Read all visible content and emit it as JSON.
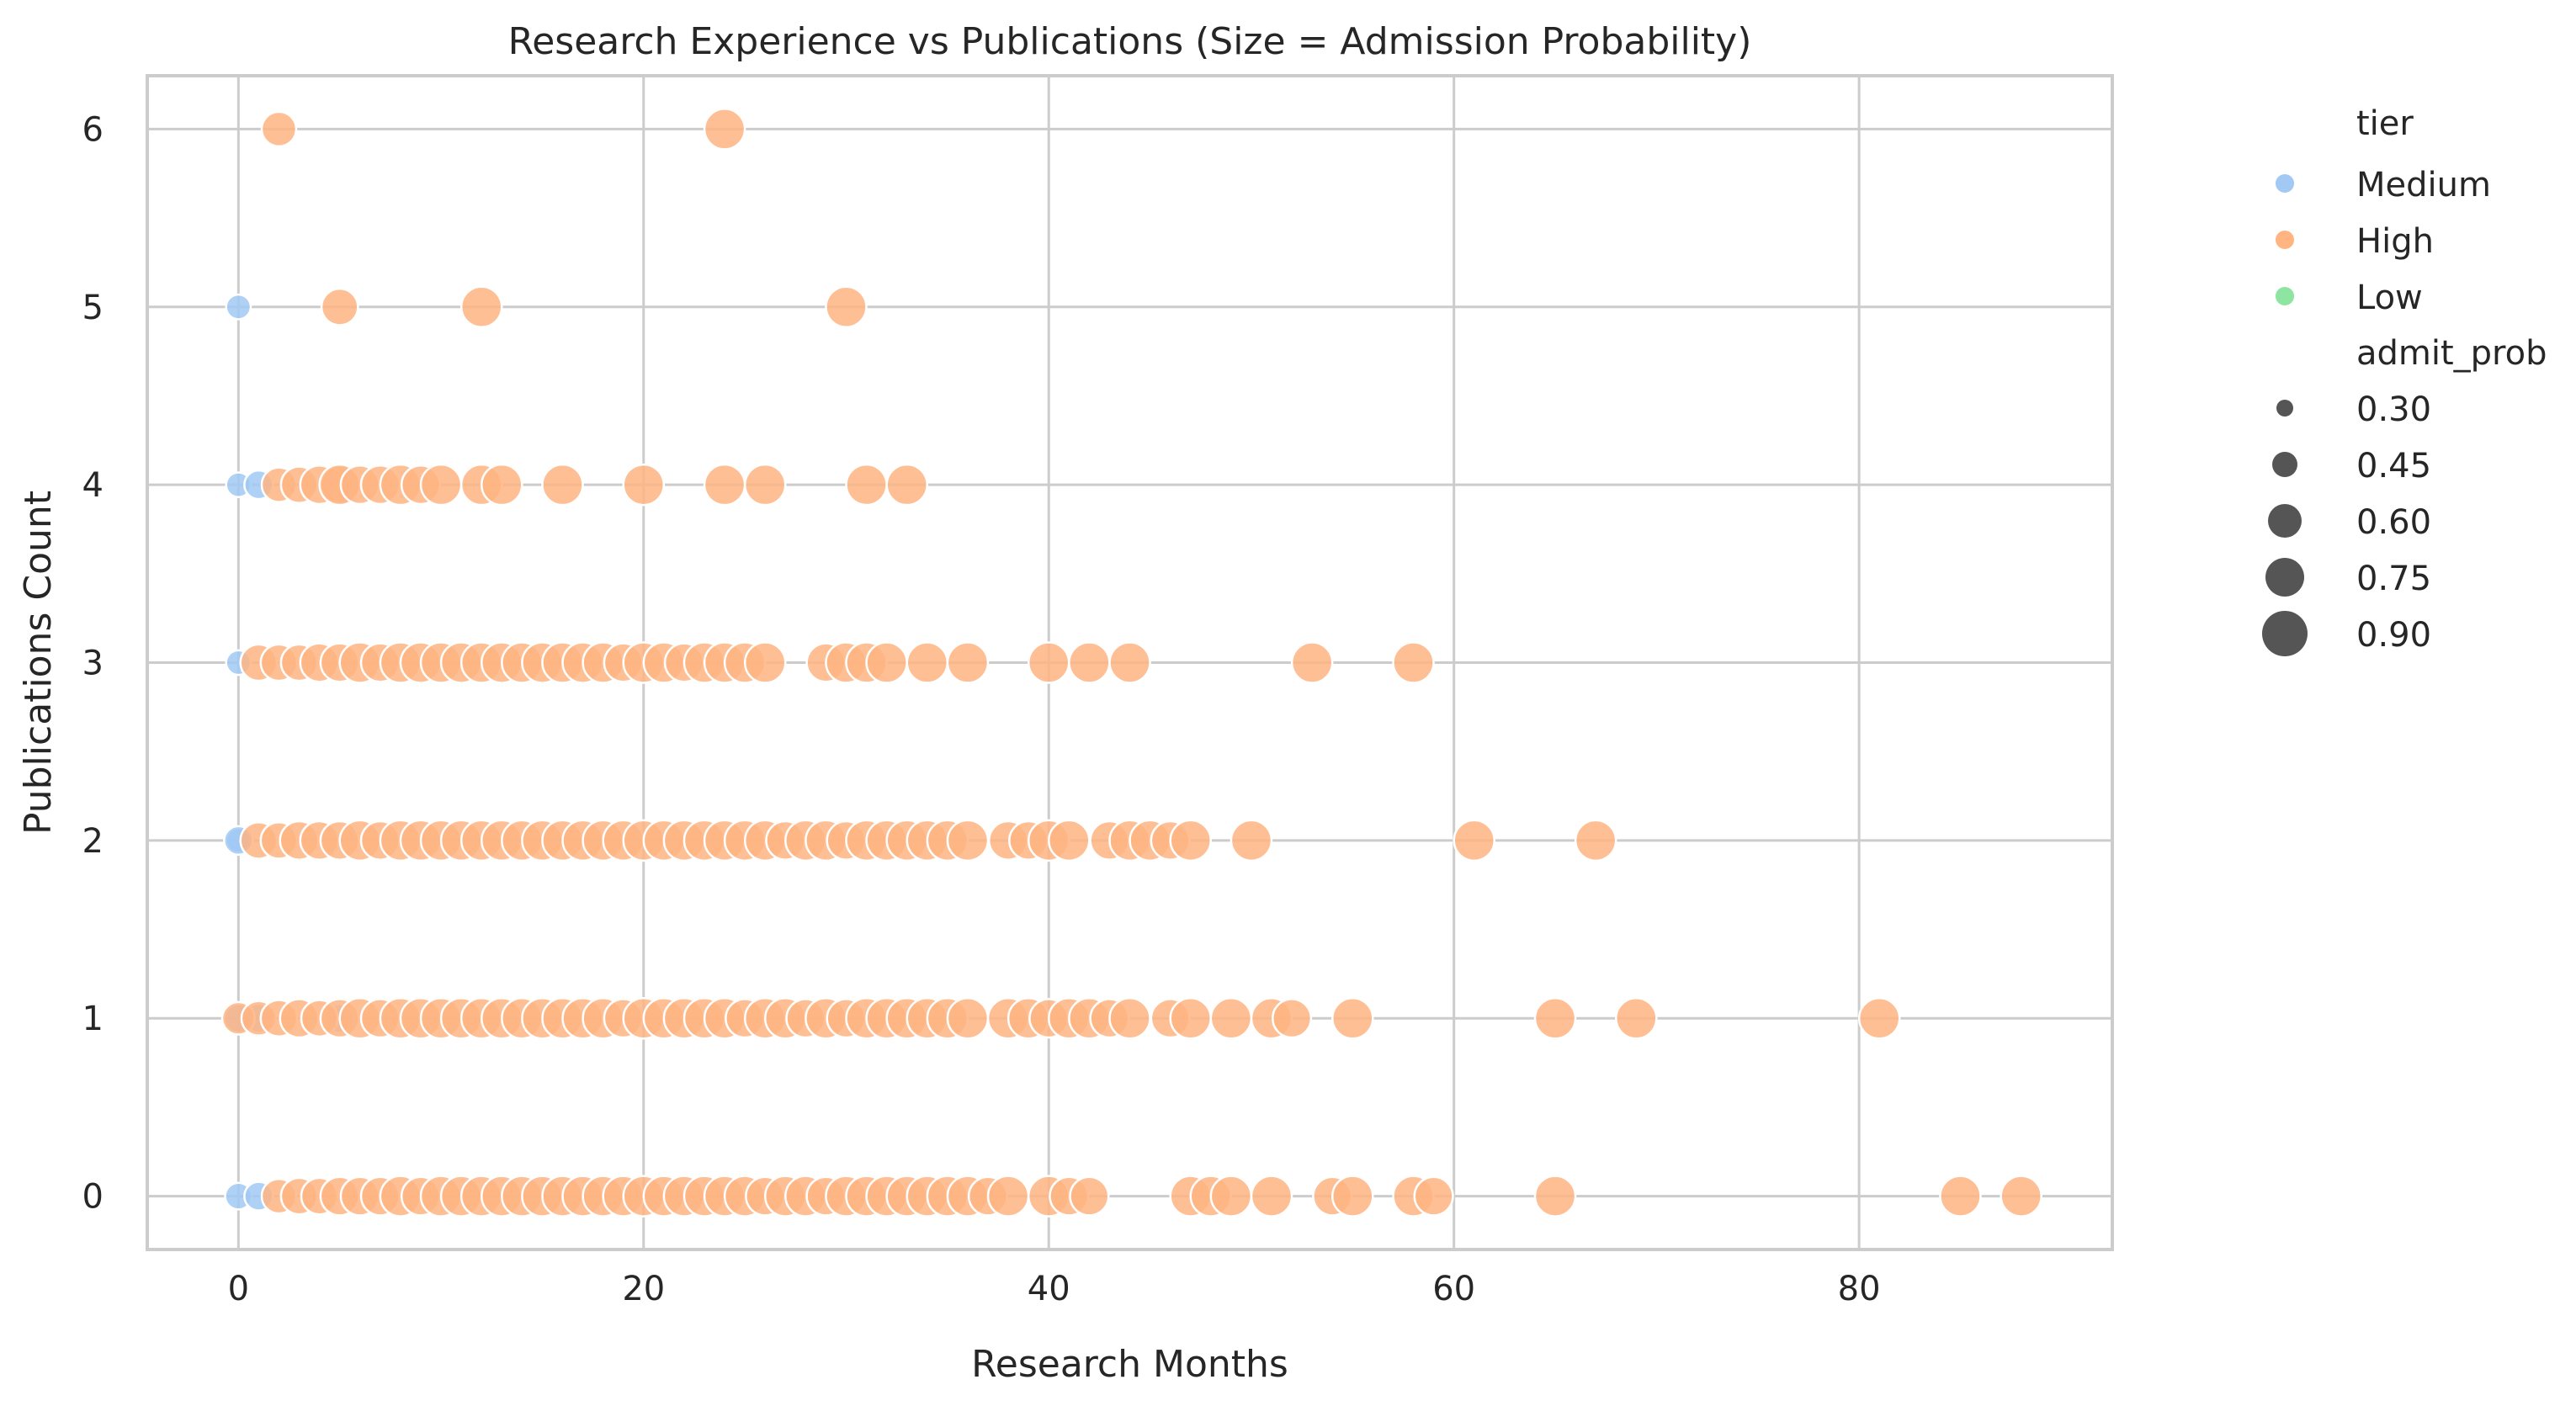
{
  "chart_data": {
    "type": "scatter",
    "title": "Research Experience vs Publications (Size = Admission Probability)",
    "xlabel": "Research Months",
    "ylabel": "Publications Count",
    "xlim": [
      -4.5,
      92.5
    ],
    "ylim": [
      -0.3,
      6.3
    ],
    "xticks": [
      0,
      20,
      40,
      60,
      80
    ],
    "yticks": [
      0,
      1,
      2,
      3,
      4,
      5,
      6
    ],
    "grid": true,
    "legend_position": "outside-right",
    "colors": {
      "Medium": "#a1c9f4",
      "High": "#ffb482",
      "Low": "#8de5a1",
      "size_marker": "#555555"
    },
    "legend": {
      "hue_title": "tier",
      "hue_entries": [
        "Medium",
        "High",
        "Low"
      ],
      "size_title": "admit_prob",
      "size_entries": [
        "0.30",
        "0.45",
        "0.60",
        "0.75",
        "0.90"
      ]
    },
    "series": [
      {
        "name": "Medium",
        "x": [
          0,
          0,
          1,
          0,
          0,
          0,
          1,
          0,
          5,
          0,
          1
        ],
        "y": [
          5,
          4,
          4,
          3,
          2,
          2,
          1,
          1,
          1,
          0,
          0
        ],
        "admit_prob": [
          0.5,
          0.5,
          0.6,
          0.5,
          0.5,
          0.6,
          0.6,
          0.6,
          0.6,
          0.55,
          0.6
        ]
      },
      {
        "name": "High",
        "x": [
          2,
          24,
          5,
          12,
          30,
          2,
          3,
          4,
          5,
          5,
          6,
          7,
          8,
          9,
          10,
          12,
          13,
          16,
          20,
          24,
          26,
          31,
          33,
          1,
          2,
          3,
          4,
          5,
          6,
          7,
          8,
          9,
          10,
          11,
          12,
          13,
          14,
          15,
          16,
          17,
          18,
          19,
          20,
          21,
          22,
          23,
          24,
          25,
          26,
          29,
          30,
          31,
          32,
          34,
          36,
          40,
          42,
          44,
          53,
          58,
          1,
          2,
          3,
          4,
          5,
          6,
          7,
          8,
          9,
          10,
          11,
          12,
          13,
          14,
          15,
          16,
          17,
          18,
          19,
          20,
          21,
          22,
          23,
          24,
          25,
          26,
          27,
          28,
          29,
          30,
          31,
          32,
          33,
          34,
          35,
          36,
          38,
          39,
          40,
          41,
          43,
          44,
          45,
          46,
          47,
          50,
          61,
          67,
          0,
          1,
          2,
          3,
          4,
          5,
          6,
          7,
          8,
          9,
          10,
          11,
          12,
          13,
          14,
          15,
          16,
          17,
          18,
          19,
          20,
          21,
          22,
          23,
          24,
          25,
          26,
          27,
          28,
          29,
          30,
          31,
          32,
          33,
          34,
          35,
          36,
          38,
          39,
          40,
          41,
          42,
          43,
          44,
          46,
          47,
          49,
          51,
          52,
          55,
          65,
          69,
          81,
          2,
          3,
          4,
          5,
          6,
          7,
          8,
          9,
          10,
          11,
          12,
          13,
          14,
          15,
          16,
          17,
          18,
          19,
          20,
          21,
          22,
          23,
          24,
          25,
          26,
          27,
          28,
          29,
          30,
          31,
          32,
          33,
          34,
          35,
          36,
          37,
          38,
          40,
          41,
          42,
          47,
          48,
          49,
          51,
          54,
          55,
          58,
          59,
          65,
          85,
          88
        ],
        "y": [
          6,
          6,
          5,
          5,
          5,
          4,
          4,
          4,
          4,
          4,
          4,
          4,
          4,
          4,
          4,
          4,
          4,
          4,
          4,
          4,
          4,
          4,
          4,
          3,
          3,
          3,
          3,
          3,
          3,
          3,
          3,
          3,
          3,
          3,
          3,
          3,
          3,
          3,
          3,
          3,
          3,
          3,
          3,
          3,
          3,
          3,
          3,
          3,
          3,
          3,
          3,
          3,
          3,
          3,
          3,
          3,
          3,
          3,
          3,
          3,
          2,
          2,
          2,
          2,
          2,
          2,
          2,
          2,
          2,
          2,
          2,
          2,
          2,
          2,
          2,
          2,
          2,
          2,
          2,
          2,
          2,
          2,
          2,
          2,
          2,
          2,
          2,
          2,
          2,
          2,
          2,
          2,
          2,
          2,
          2,
          2,
          2,
          2,
          2,
          2,
          2,
          2,
          2,
          2,
          2,
          2,
          2,
          2,
          1,
          1,
          1,
          1,
          1,
          1,
          1,
          1,
          1,
          1,
          1,
          1,
          1,
          1,
          1,
          1,
          1,
          1,
          1,
          1,
          1,
          1,
          1,
          1,
          1,
          1,
          1,
          1,
          1,
          1,
          1,
          1,
          1,
          1,
          1,
          1,
          1,
          1,
          1,
          1,
          1,
          1,
          1,
          1,
          1,
          1,
          1,
          1,
          1,
          1,
          1,
          1,
          1,
          0,
          0,
          0,
          0,
          0,
          0,
          0,
          0,
          0,
          0,
          0,
          0,
          0,
          0,
          0,
          0,
          0,
          0,
          0,
          0,
          0,
          0,
          0,
          0,
          0,
          0,
          0,
          0,
          0,
          0,
          0,
          0,
          0,
          0,
          0,
          0,
          0,
          0,
          0,
          0,
          0,
          0,
          0,
          0,
          0,
          0,
          0,
          0,
          0,
          0,
          0
        ],
        "admit_prob": [
          0.75,
          0.9,
          0.8,
          0.9,
          0.9,
          0.75,
          0.8,
          0.85,
          0.85,
          0.9,
          0.85,
          0.85,
          0.9,
          0.85,
          0.9,
          0.9,
          0.9,
          0.9,
          0.9,
          0.9,
          0.9,
          0.9,
          0.9,
          0.8,
          0.8,
          0.8,
          0.85,
          0.85,
          0.9,
          0.85,
          0.9,
          0.9,
          0.9,
          0.9,
          0.9,
          0.9,
          0.9,
          0.9,
          0.9,
          0.9,
          0.9,
          0.85,
          0.9,
          0.9,
          0.85,
          0.9,
          0.9,
          0.9,
          0.9,
          0.85,
          0.9,
          0.9,
          0.9,
          0.9,
          0.9,
          0.9,
          0.9,
          0.9,
          0.9,
          0.9,
          0.8,
          0.8,
          0.85,
          0.85,
          0.85,
          0.9,
          0.85,
          0.9,
          0.9,
          0.9,
          0.9,
          0.9,
          0.9,
          0.9,
          0.9,
          0.9,
          0.9,
          0.9,
          0.9,
          0.9,
          0.9,
          0.9,
          0.9,
          0.9,
          0.9,
          0.9,
          0.85,
          0.9,
          0.9,
          0.85,
          0.9,
          0.9,
          0.9,
          0.9,
          0.9,
          0.9,
          0.85,
          0.85,
          0.9,
          0.9,
          0.85,
          0.9,
          0.9,
          0.85,
          0.9,
          0.9,
          0.9,
          0.9,
          0.7,
          0.75,
          0.8,
          0.85,
          0.8,
          0.85,
          0.9,
          0.85,
          0.9,
          0.9,
          0.9,
          0.9,
          0.9,
          0.9,
          0.9,
          0.9,
          0.9,
          0.9,
          0.9,
          0.85,
          0.9,
          0.9,
          0.9,
          0.9,
          0.9,
          0.85,
          0.9,
          0.9,
          0.85,
          0.9,
          0.85,
          0.9,
          0.9,
          0.9,
          0.9,
          0.9,
          0.9,
          0.9,
          0.9,
          0.85,
          0.9,
          0.9,
          0.85,
          0.9,
          0.85,
          0.9,
          0.9,
          0.9,
          0.85,
          0.9,
          0.9,
          0.9,
          0.9,
          0.75,
          0.8,
          0.8,
          0.85,
          0.85,
          0.85,
          0.9,
          0.85,
          0.9,
          0.9,
          0.9,
          0.9,
          0.9,
          0.9,
          0.9,
          0.9,
          0.9,
          0.9,
          0.9,
          0.9,
          0.9,
          0.9,
          0.9,
          0.9,
          0.85,
          0.9,
          0.9,
          0.85,
          0.9,
          0.9,
          0.9,
          0.9,
          0.9,
          0.9,
          0.9,
          0.85,
          0.9,
          0.9,
          0.85,
          0.85,
          0.9,
          0.9,
          0.9,
          0.9,
          0.85,
          0.9,
          0.9,
          0.85,
          0.9,
          0.9,
          0.9
        ]
      },
      {
        "name": "Low",
        "x": [],
        "y": [],
        "admit_prob": []
      }
    ]
  }
}
